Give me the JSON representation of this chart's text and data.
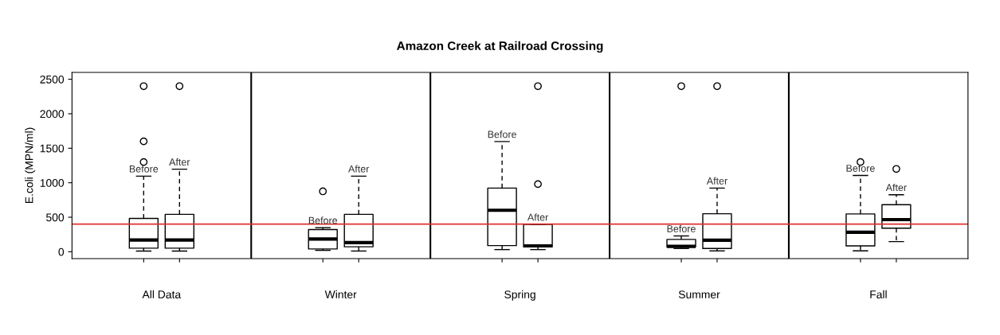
{
  "chart_data": {
    "type": "box",
    "title": "Amazon Creek at Railroad Crossing",
    "ylabel": "E.coli (MPN/ml)",
    "categories": [
      "All Data",
      "Winter",
      "Spring",
      "Summer",
      "Fall"
    ],
    "series": [
      {
        "name": "Before",
        "color": "#000000",
        "boxes": [
          {
            "low": 10,
            "q1": 52,
            "median": 169,
            "q3": 482,
            "high": 1096,
            "outliers": [
              1300,
              1600,
              2400
            ]
          },
          {
            "low": 20,
            "q1": 40,
            "median": 185,
            "q3": 321,
            "high": 349,
            "outliers": [
              875
            ]
          },
          {
            "low": 31,
            "q1": 89,
            "median": 601,
            "q3": 922,
            "high": 1597
          },
          {
            "low": 47,
            "q1": 70,
            "median": 78,
            "q3": 178,
            "high": 229,
            "outliers": [
              2400
            ]
          },
          {
            "low": 12,
            "q1": 85,
            "median": 283,
            "q3": 547,
            "high": 1105,
            "outliers": [
              1300
            ]
          }
        ]
      },
      {
        "name": "After",
        "color": "#000000",
        "boxes": [
          {
            "low": 10,
            "q1": 52,
            "median": 169,
            "q3": 542,
            "high": 1196,
            "outliers": [
              2400
            ]
          },
          {
            "low": 10,
            "q1": 72,
            "median": 132,
            "q3": 542,
            "high": 1096
          },
          {
            "low": 31,
            "q1": 70,
            "median": 85,
            "q3": 395,
            "high": 395,
            "outliers": [
              980,
              2400
            ]
          },
          {
            "low": 12,
            "q1": 47,
            "median": 167,
            "q3": 550,
            "high": 922,
            "outliers": [
              2400
            ]
          },
          {
            "low": 147,
            "q1": 341,
            "median": 465,
            "q3": 682,
            "high": 826,
            "outliers": [
              1200
            ]
          }
        ]
      }
    ],
    "ylim": [
      -100,
      2600
    ],
    "yticks": [
      0,
      500,
      1000,
      1500,
      2000,
      2500
    ],
    "ref_lines": [
      {
        "axis": "y",
        "value": 400,
        "color": "#e0302a"
      }
    ],
    "grid": false,
    "legend": false
  }
}
